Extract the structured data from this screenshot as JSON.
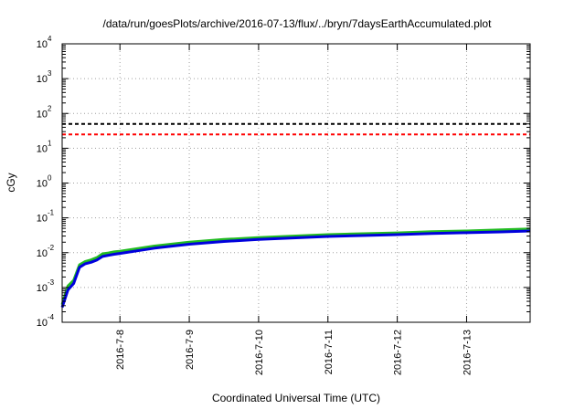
{
  "chart_data": {
    "type": "line",
    "title": "/data/run/goesPlots/archive/2016-07-13/flux/../bryn/7daysEarthAccumulated.plot",
    "xlabel": "Coordinated Universal Time (UTC)",
    "ylabel": "cGy",
    "yscale": "log",
    "ylim": [
      0.0001,
      10000
    ],
    "xlim": [
      "2016-07-07T04:00",
      "2016-07-13T22:00"
    ],
    "grid": true,
    "x_ticks": [
      "2016-7-8",
      "2016-7-9",
      "2016-7-10",
      "2016-7-11",
      "2016-7-12",
      "2016-7-13"
    ],
    "y_ticks": [
      {
        "value": 0.0001,
        "base": "10",
        "exp": "-4"
      },
      {
        "value": 0.001,
        "base": "10",
        "exp": "-3"
      },
      {
        "value": 0.01,
        "base": "10",
        "exp": "-2"
      },
      {
        "value": 0.1,
        "base": "10",
        "exp": "-1"
      },
      {
        "value": 1,
        "base": "10",
        "exp": "0"
      },
      {
        "value": 10,
        "base": "10",
        "exp": "1"
      },
      {
        "value": 100,
        "base": "10",
        "exp": "2"
      },
      {
        "value": 1000,
        "base": "10",
        "exp": "3"
      },
      {
        "value": 10000,
        "base": "10",
        "exp": "4"
      }
    ],
    "thresholds": [
      {
        "value": 50,
        "color": "#000000"
      },
      {
        "value": 25,
        "color": "#ff0000"
      }
    ],
    "series": [
      {
        "color": "#22bb22",
        "x": [
          "2016-07-07T04:00",
          "2016-07-07T06:00",
          "2016-07-07T08:00",
          "2016-07-07T10:00",
          "2016-07-07T12:00",
          "2016-07-07T14:00",
          "2016-07-07T16:00",
          "2016-07-07T18:00",
          "2016-07-07T20:00",
          "2016-07-07T22:00",
          "2016-07-08T00:00",
          "2016-07-08T12:00",
          "2016-07-09T00:00",
          "2016-07-09T12:00",
          "2016-07-10T00:00",
          "2016-07-10T12:00",
          "2016-07-11T00:00",
          "2016-07-11T12:00",
          "2016-07-12T00:00",
          "2016-07-12T12:00",
          "2016-07-13T00:00",
          "2016-07-13T12:00",
          "2016-07-13T22:00"
        ],
        "y": [
          0.00032,
          0.0011,
          0.0016,
          0.0045,
          0.0056,
          0.0062,
          0.0072,
          0.0093,
          0.0098,
          0.0105,
          0.011,
          0.0155,
          0.02,
          0.024,
          0.027,
          0.03,
          0.033,
          0.035,
          0.037,
          0.04,
          0.042,
          0.045,
          0.048
        ]
      },
      {
        "color": "#0000dd",
        "x": [
          "2016-07-07T04:00",
          "2016-07-07T06:00",
          "2016-07-07T08:00",
          "2016-07-07T10:00",
          "2016-07-07T12:00",
          "2016-07-07T14:00",
          "2016-07-07T16:00",
          "2016-07-07T18:00",
          "2016-07-07T20:00",
          "2016-07-07T22:00",
          "2016-07-08T00:00",
          "2016-07-08T12:00",
          "2016-07-09T00:00",
          "2016-07-09T12:00",
          "2016-07-10T00:00",
          "2016-07-10T12:00",
          "2016-07-11T00:00",
          "2016-07-11T12:00",
          "2016-07-12T00:00",
          "2016-07-12T12:00",
          "2016-07-13T00:00",
          "2016-07-13T12:00",
          "2016-07-13T22:00"
        ],
        "y": [
          0.00027,
          0.00085,
          0.0013,
          0.0038,
          0.0048,
          0.0053,
          0.0061,
          0.0078,
          0.0084,
          0.009,
          0.0095,
          0.0135,
          0.0175,
          0.021,
          0.024,
          0.0265,
          0.0292,
          0.031,
          0.033,
          0.0355,
          0.0375,
          0.0395,
          0.042
        ]
      }
    ]
  }
}
